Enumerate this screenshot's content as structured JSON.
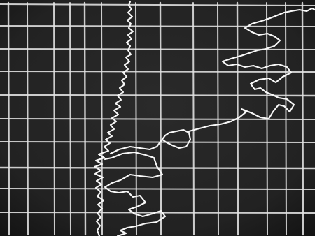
{
  "photo": {
    "subject": "oscillograph-trace-recording",
    "colors": {
      "background": "#262626",
      "background_edge": "#121212",
      "grid": "#e4e4e4",
      "trace": "#f7f7f7"
    },
    "grid": "on"
  }
}
